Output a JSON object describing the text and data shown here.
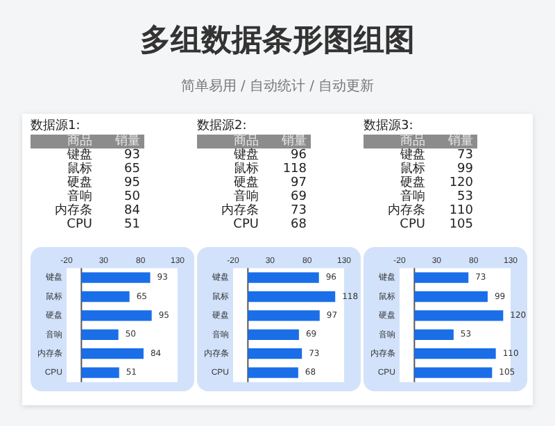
{
  "chart_data": [
    {
      "type": "other",
      "title": "多组数据条形图组图",
      "subtitle": "简单易用 / 自动统计 / 自动更新"
    },
    {
      "type": "other",
      "title": "数据源1:",
      "annotations": [
        "商品",
        "销量"
      ],
      "categories": [
        "键盘",
        "鼠标",
        "硬盘",
        "音响",
        "内存条",
        "CPU"
      ],
      "values": [
        93,
        65,
        95,
        50,
        84,
        51
      ],
      "data_labels": true
    },
    {
      "type": "other",
      "title": "数据源2:",
      "annotations": [
        "商品",
        "销量"
      ],
      "categories": [
        "键盘",
        "鼠标",
        "硬盘",
        "音响",
        "内存条",
        "CPU"
      ],
      "values": [
        96,
        118,
        97,
        69,
        73,
        68
      ],
      "data_labels": true
    },
    {
      "type": "other",
      "title": "数据源3:",
      "annotations": [
        "商品",
        "销量"
      ],
      "categories": [
        "键盘",
        "鼠标",
        "硬盘",
        "音响",
        "内存条",
        "CPU"
      ],
      "values": [
        73,
        99,
        120,
        53,
        110,
        105
      ],
      "data_labels": true
    },
    {
      "type": "bar",
      "orientation": "horizontal",
      "categories": [
        "键盘",
        "鼠标",
        "硬盘",
        "音响",
        "内存条",
        "CPU"
      ],
      "values": [
        93,
        65,
        95,
        50,
        84,
        51
      ],
      "color": "#1a6ee8",
      "xlim": [
        -20,
        130
      ],
      "xticks": [
        -20,
        30,
        80,
        130
      ],
      "data_labels": true
    },
    {
      "type": "bar",
      "orientation": "horizontal",
      "categories": [
        "键盘",
        "鼠标",
        "硬盘",
        "音响",
        "内存条",
        "CPU"
      ],
      "values": [
        96,
        118,
        97,
        69,
        73,
        68
      ],
      "color": "#1a6ee8",
      "xlim": [
        -20,
        130
      ],
      "xticks": [
        -20,
        30,
        80,
        130
      ],
      "data_labels": true
    },
    {
      "type": "bar",
      "orientation": "horizontal",
      "categories": [
        "键盘",
        "鼠标",
        "硬盘",
        "音响",
        "内存条",
        "CPU"
      ],
      "values": [
        73,
        99,
        120,
        53,
        110,
        105
      ],
      "color": "#1a6ee8",
      "xlim": [
        -20,
        130
      ],
      "xticks": [
        -20,
        30,
        80,
        130
      ],
      "data_labels": true
    }
  ]
}
